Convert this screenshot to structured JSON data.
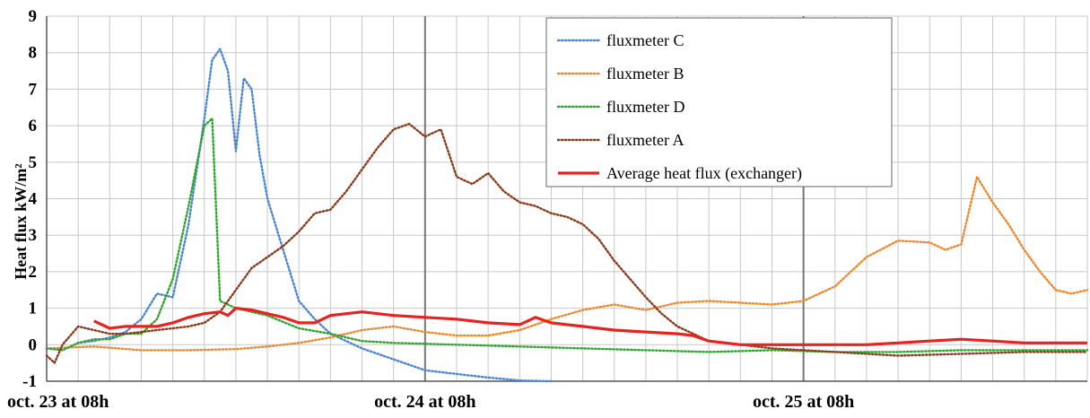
{
  "chart_data": {
    "type": "line",
    "title": "",
    "xlabel": "",
    "ylabel": "Heat flux kW/m²",
    "ylim": [
      -1,
      9
    ],
    "yticks": [
      "-1",
      "0",
      "1",
      "2",
      "3",
      "4",
      "5",
      "6",
      "7",
      "8",
      "9"
    ],
    "xlim": [
      "oct. 23 at 08h",
      "oct. 25 at 22h"
    ],
    "xtick_labels": [
      "oct. 23 at 08h",
      "oct. 24 at 08h",
      "oct. 25 at 08h"
    ],
    "grid": true,
    "legend_position": "top-center",
    "series": [
      {
        "name": "fluxmeter C",
        "color": "#4a86d0",
        "style": "dotted",
        "points": [
          [
            0,
            -0.1
          ],
          [
            1,
            -0.15
          ],
          [
            2,
            0.05
          ],
          [
            3,
            0.1
          ],
          [
            4,
            0.2
          ],
          [
            5,
            0.35
          ],
          [
            6,
            0.7
          ],
          [
            7,
            1.4
          ],
          [
            8,
            1.3
          ],
          [
            9,
            3.3
          ],
          [
            10,
            6.2
          ],
          [
            10.5,
            7.8
          ],
          [
            11,
            8.1
          ],
          [
            11.5,
            7.5
          ],
          [
            12,
            5.3
          ],
          [
            12.5,
            7.3
          ],
          [
            13,
            7.0
          ],
          [
            13.5,
            5.2
          ],
          [
            14,
            4.0
          ],
          [
            15,
            2.6
          ],
          [
            16,
            1.2
          ],
          [
            17,
            0.7
          ],
          [
            18,
            0.3
          ],
          [
            20,
            -0.1
          ],
          [
            22,
            -0.4
          ],
          [
            24,
            -0.7
          ],
          [
            26,
            -0.8
          ],
          [
            28,
            -0.9
          ],
          [
            30,
            -0.98
          ],
          [
            32,
            -1.0
          ]
        ]
      },
      {
        "name": "fluxmeter B",
        "color": "#f0882a",
        "style": "dotted",
        "points": [
          [
            0,
            -0.1
          ],
          [
            3,
            -0.05
          ],
          [
            6,
            -0.15
          ],
          [
            9,
            -0.15
          ],
          [
            12,
            -0.12
          ],
          [
            14,
            -0.05
          ],
          [
            16,
            0.05
          ],
          [
            18,
            0.2
          ],
          [
            20,
            0.4
          ],
          [
            22,
            0.5
          ],
          [
            24,
            0.35
          ],
          [
            26,
            0.25
          ],
          [
            28,
            0.25
          ],
          [
            30,
            0.4
          ],
          [
            32,
            0.7
          ],
          [
            34,
            0.95
          ],
          [
            36,
            1.1
          ],
          [
            38,
            0.95
          ],
          [
            40,
            1.15
          ],
          [
            42,
            1.2
          ],
          [
            44,
            1.15
          ],
          [
            46,
            1.1
          ],
          [
            48,
            1.2
          ],
          [
            50,
            1.6
          ],
          [
            52,
            2.4
          ],
          [
            54,
            2.85
          ],
          [
            56,
            2.8
          ],
          [
            57,
            2.6
          ],
          [
            58,
            2.75
          ],
          [
            59,
            4.6
          ],
          [
            60,
            3.9
          ],
          [
            61,
            3.3
          ],
          [
            62,
            2.6
          ],
          [
            63,
            2.0
          ],
          [
            64,
            1.5
          ],
          [
            65,
            1.4
          ],
          [
            66,
            1.5
          ]
        ]
      },
      {
        "name": "fluxmeter D",
        "color": "#2fa52f",
        "style": "dotted",
        "points": [
          [
            0,
            -0.1
          ],
          [
            1,
            -0.15
          ],
          [
            2,
            0.05
          ],
          [
            3,
            0.15
          ],
          [
            4,
            0.15
          ],
          [
            5,
            0.3
          ],
          [
            6,
            0.3
          ],
          [
            7,
            0.7
          ],
          [
            8,
            1.8
          ],
          [
            9,
            3.8
          ],
          [
            10,
            6.0
          ],
          [
            10.5,
            6.2
          ],
          [
            11,
            1.2
          ],
          [
            12,
            1.0
          ],
          [
            14,
            0.8
          ],
          [
            16,
            0.45
          ],
          [
            18,
            0.3
          ],
          [
            20,
            0.1
          ],
          [
            22,
            0.05
          ],
          [
            26,
            0.0
          ],
          [
            30,
            -0.05
          ],
          [
            34,
            -0.1
          ],
          [
            38,
            -0.15
          ],
          [
            42,
            -0.2
          ],
          [
            46,
            -0.15
          ],
          [
            50,
            -0.2
          ],
          [
            54,
            -0.2
          ],
          [
            58,
            -0.15
          ],
          [
            62,
            -0.15
          ],
          [
            66,
            -0.15
          ]
        ]
      },
      {
        "name": "fluxmeter A",
        "color": "#8b3a1a",
        "style": "dotted",
        "points": [
          [
            0,
            -0.3
          ],
          [
            0.5,
            -0.5
          ],
          [
            1,
            0.0
          ],
          [
            2,
            0.5
          ],
          [
            3,
            0.4
          ],
          [
            4,
            0.3
          ],
          [
            5,
            0.3
          ],
          [
            6,
            0.35
          ],
          [
            7,
            0.4
          ],
          [
            8,
            0.45
          ],
          [
            9,
            0.5
          ],
          [
            10,
            0.6
          ],
          [
            11,
            0.9
          ],
          [
            12,
            1.5
          ],
          [
            13,
            2.1
          ],
          [
            14,
            2.4
          ],
          [
            15,
            2.7
          ],
          [
            16,
            3.1
          ],
          [
            17,
            3.6
          ],
          [
            18,
            3.7
          ],
          [
            19,
            4.2
          ],
          [
            20,
            4.8
          ],
          [
            21,
            5.4
          ],
          [
            22,
            5.9
          ],
          [
            23,
            6.05
          ],
          [
            24,
            5.7
          ],
          [
            25,
            5.9
          ],
          [
            26,
            4.6
          ],
          [
            27,
            4.4
          ],
          [
            28,
            4.7
          ],
          [
            29,
            4.2
          ],
          [
            30,
            3.9
          ],
          [
            31,
            3.8
          ],
          [
            32,
            3.6
          ],
          [
            33,
            3.5
          ],
          [
            34,
            3.3
          ],
          [
            35,
            2.9
          ],
          [
            36,
            2.3
          ],
          [
            37,
            1.8
          ],
          [
            38,
            1.3
          ],
          [
            39,
            0.85
          ],
          [
            40,
            0.5
          ],
          [
            42,
            0.1
          ],
          [
            44,
            0.0
          ],
          [
            46,
            -0.1
          ],
          [
            50,
            -0.2
          ],
          [
            54,
            -0.3
          ],
          [
            58,
            -0.25
          ],
          [
            62,
            -0.2
          ],
          [
            66,
            -0.2
          ]
        ]
      },
      {
        "name": "Average heat flux (exchanger)",
        "color": "#e8221e",
        "style": "solid",
        "points": [
          [
            3,
            0.65
          ],
          [
            4,
            0.45
          ],
          [
            5,
            0.5
          ],
          [
            6,
            0.5
          ],
          [
            7,
            0.5
          ],
          [
            8,
            0.6
          ],
          [
            9,
            0.75
          ],
          [
            10,
            0.85
          ],
          [
            11,
            0.9
          ],
          [
            11.5,
            0.8
          ],
          [
            12,
            1.0
          ],
          [
            13,
            0.95
          ],
          [
            14,
            0.85
          ],
          [
            15,
            0.75
          ],
          [
            16,
            0.6
          ],
          [
            17,
            0.6
          ],
          [
            18,
            0.8
          ],
          [
            19,
            0.85
          ],
          [
            20,
            0.9
          ],
          [
            21,
            0.85
          ],
          [
            22,
            0.8
          ],
          [
            24,
            0.75
          ],
          [
            26,
            0.7
          ],
          [
            28,
            0.6
          ],
          [
            30,
            0.55
          ],
          [
            31,
            0.75
          ],
          [
            32,
            0.6
          ],
          [
            34,
            0.5
          ],
          [
            36,
            0.4
          ],
          [
            38,
            0.35
          ],
          [
            40,
            0.3
          ],
          [
            41,
            0.25
          ],
          [
            42,
            0.1
          ],
          [
            44,
            0.0
          ],
          [
            46,
            0.0
          ],
          [
            48,
            0.0
          ],
          [
            50,
            0.0
          ],
          [
            52,
            0.0
          ],
          [
            54,
            0.05
          ],
          [
            56,
            0.1
          ],
          [
            58,
            0.15
          ],
          [
            60,
            0.1
          ],
          [
            62,
            0.05
          ],
          [
            64,
            0.05
          ],
          [
            66,
            0.05
          ]
        ]
      }
    ]
  }
}
